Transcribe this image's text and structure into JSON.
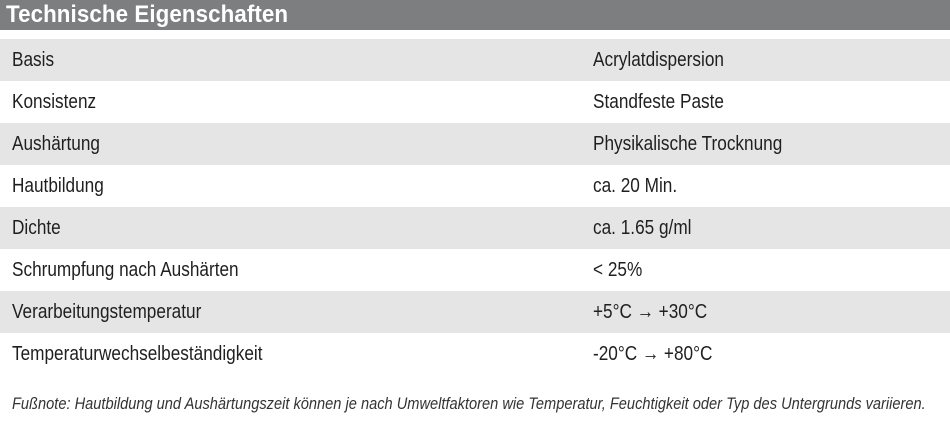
{
  "header": {
    "title": "Technische Eigenschaften"
  },
  "rows": [
    {
      "property": "Basis",
      "value": "Acrylatdispersion"
    },
    {
      "property": "Konsistenz",
      "value": "Standfeste Paste"
    },
    {
      "property": "Aushärtung",
      "value": "Physikalische Trocknung"
    },
    {
      "property": "Hautbildung",
      "value": "ca. 20 Min."
    },
    {
      "property": "Dichte",
      "value": "ca. 1.65 g/ml"
    },
    {
      "property": "Schrumpfung nach Aushärten",
      "value": "< 25%"
    },
    {
      "property": "Verarbeitungstemperatur",
      "value": "+5°C → +30°C"
    },
    {
      "property": "Temperaturwechselbeständigkeit",
      "value": "-20°C → +80°C"
    }
  ],
  "footnote": "Fußnote: Hautbildung und Aushärtungszeit können je nach Umweltfaktoren wie Temperatur, Feuchtigkeit oder Typ des Untergrunds variieren.",
  "colors": {
    "header_bg": "#7d7e80",
    "row_shade": "#e5e5e6"
  }
}
